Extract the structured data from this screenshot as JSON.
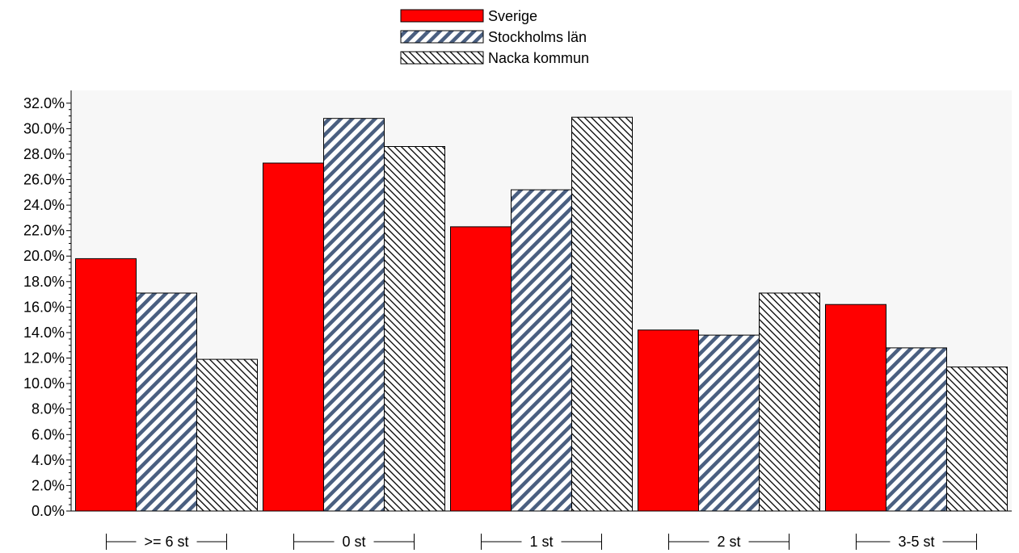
{
  "chart_data": {
    "type": "bar",
    "categories": [
      ">= 6 st",
      "0 st",
      "1 st",
      "2 st",
      "3-5 st"
    ],
    "series": [
      {
        "name": "Sverige",
        "values": [
          19.8,
          27.3,
          22.3,
          14.2,
          16.2
        ],
        "pattern": "solid",
        "color": "#ff0000"
      },
      {
        "name": "Stockholms län",
        "values": [
          17.1,
          30.8,
          25.2,
          13.8,
          12.8
        ],
        "pattern": "diagonal-stripes",
        "color": "#4a5f80"
      },
      {
        "name": "Nacka kommun",
        "values": [
          11.9,
          28.6,
          30.9,
          17.1,
          11.3
        ],
        "pattern": "hatch",
        "color": "#000000"
      }
    ],
    "ylim": [
      0,
      33
    ],
    "ytick_step": 2,
    "yticks": [
      "0.0%",
      "2.0%",
      "4.0%",
      "6.0%",
      "8.0%",
      "10.0%",
      "12.0%",
      "14.0%",
      "16.0%",
      "18.0%",
      "20.0%",
      "22.0%",
      "24.0%",
      "26.0%",
      "28.0%",
      "30.0%",
      "32.0%"
    ],
    "legend_position": "top-center",
    "plot_background": "#f7f7f7",
    "grid": false
  }
}
